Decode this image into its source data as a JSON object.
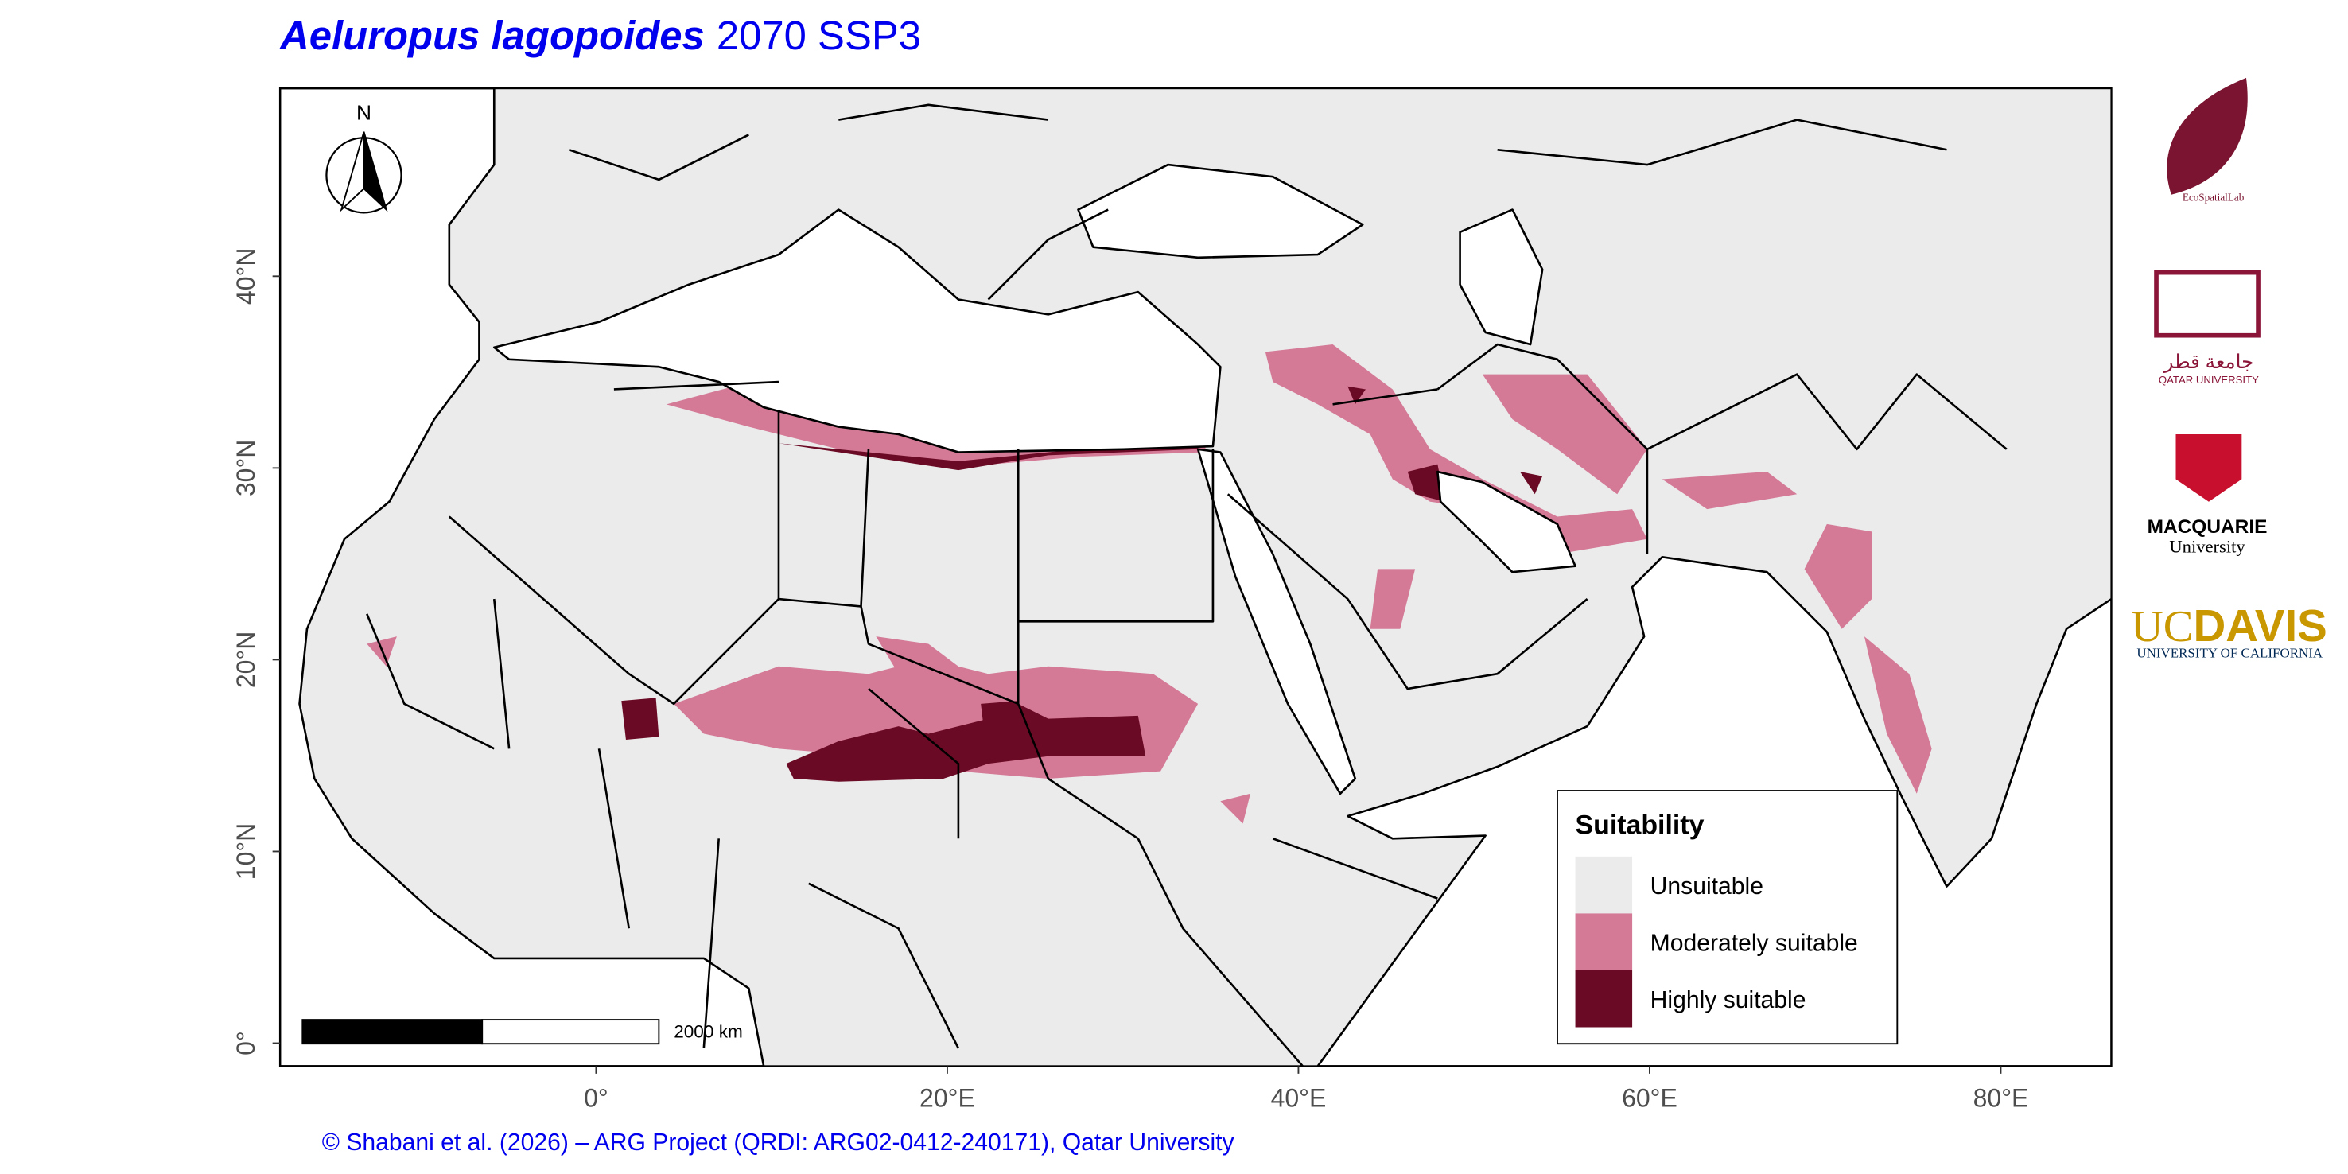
{
  "chart_data": {
    "type": "map",
    "title_species": "Aeluropus lagopoides",
    "title_rest": "2070 SSP3",
    "xlim": [
      -18,
      86.3
    ],
    "ylim": [
      -1.2,
      49.8
    ],
    "xticks": [
      {
        "value": 0,
        "label": "0°"
      },
      {
        "value": 20,
        "label": "20°E"
      },
      {
        "value": 40,
        "label": "40°E"
      },
      {
        "value": 60,
        "label": "60°E"
      },
      {
        "value": 80,
        "label": "80°E"
      }
    ],
    "yticks": [
      {
        "value": 0,
        "label": "0°"
      },
      {
        "value": 10,
        "label": "10°N"
      },
      {
        "value": 20,
        "label": "20°N"
      },
      {
        "value": 30,
        "label": "30°N"
      },
      {
        "value": 40,
        "label": "40°N"
      }
    ],
    "legend": {
      "title": "Suitability",
      "position": "bottom-right",
      "items": [
        {
          "name": "Unsuitable",
          "color": "#ebebeb"
        },
        {
          "name": "Moderately suitable",
          "color": "#d47a97"
        },
        {
          "name": "Highly suitable",
          "color": "#6b0a25"
        }
      ]
    },
    "north_label": "N",
    "scale_bar_label": "2000 km"
  },
  "logos": {
    "ecospatial": "EcoSpatialLab",
    "qu_arabic": "جامعة قطر",
    "qu_english": "QATAR UNIVERSITY",
    "macquarie": "MACQUARIE",
    "macquarie_sub": "University",
    "ucdavis_uc": "UC",
    "ucdavis_davis": "DAVIS",
    "ucdavis_sub": "UNIVERSITY OF CALIFORNIA"
  },
  "credit": "© Shabani et al. (2026) – ARG Project (QRDI: ARG02-0412-240171), Qatar University"
}
